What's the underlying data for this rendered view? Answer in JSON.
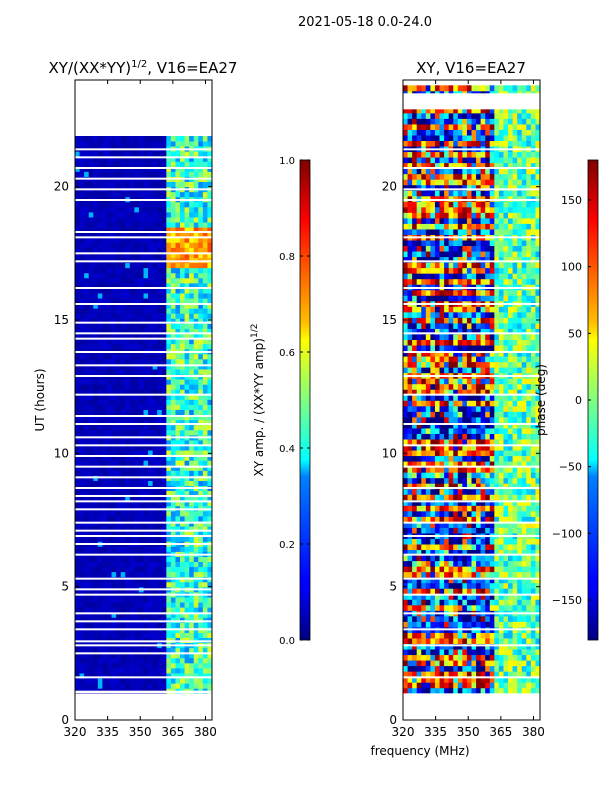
{
  "suptitle": "2021-05-18 0.0-24.0",
  "chart_data": [
    {
      "type": "heatmap",
      "title_main": "XY/(XX*YY)",
      "title_sup": "1/2",
      "title_tail": ", V16=EA27",
      "xlabel": "",
      "ylabel": "UT (hours)",
      "x_ticks": [
        320,
        335,
        350,
        365,
        380
      ],
      "xlim": [
        320,
        383
      ],
      "y_ticks": [
        0,
        5,
        10,
        15,
        20
      ],
      "ylim": [
        0,
        24
      ],
      "data_start_hour": 1.0,
      "data_end_hour": 21.9,
      "gap_bands": [
        [
          21.9,
          24.0
        ],
        [
          23.2,
          23.5
        ],
        [
          1.0,
          1.1
        ]
      ],
      "missing_rows": [
        1.6,
        2.5,
        2.8,
        2.95,
        3.4,
        3.7,
        4.0,
        4.7,
        4.9,
        5.3,
        6.2,
        6.6,
        6.9,
        7.1,
        7.4,
        7.9,
        8.2,
        8.4,
        8.7,
        9.1,
        9.5,
        9.9,
        10.3,
        10.6,
        11.1,
        11.4,
        12.2,
        12.9,
        13.3,
        13.8,
        14.3,
        14.5,
        14.9,
        15.6,
        16.2,
        17.2,
        17.5,
        18.1,
        18.3,
        19.5,
        19.9,
        20.3,
        20.7,
        21.1,
        21.4
      ],
      "bright_band_mhz": [
        362,
        382
      ],
      "colorbar": {
        "label_main": "XY amp. / (XX*YY amp)",
        "label_sup": "1/2",
        "ticks": [
          "0.0",
          "0.2",
          "0.4",
          "0.6",
          "0.8",
          "1.0"
        ],
        "range": [
          0.0,
          1.0
        ]
      }
    },
    {
      "type": "heatmap",
      "title_main": "XY, V16=EA27",
      "xlabel": "frequency (MHz)",
      "ylabel": "",
      "x_ticks": [
        320,
        335,
        350,
        365,
        380
      ],
      "xlim": [
        320,
        383
      ],
      "y_ticks": [
        0,
        5,
        10,
        15,
        20
      ],
      "ylim": [
        0,
        24
      ],
      "data_start_hour": 1.0,
      "data_end_hour": 23.8,
      "gap_bands": [
        [
          22.9,
          23.5
        ],
        [
          0.0,
          1.0
        ]
      ],
      "missing_rows": [
        1.6,
        2.8,
        3.4,
        4.0,
        4.7,
        5.3,
        6.2,
        6.9,
        7.4,
        8.2,
        8.7,
        9.5,
        10.3,
        11.1,
        12.2,
        12.9,
        13.8,
        14.5,
        15.6,
        16.2,
        17.2,
        18.1,
        19.5,
        19.9,
        20.7,
        21.4
      ],
      "bright_band_mhz": [
        362,
        382
      ],
      "colorbar": {
        "label_main": "phase (deg)",
        "ticks": [
          "150",
          "100",
          "50",
          "0",
          "−50",
          "−100",
          "−150"
        ],
        "tick_values": [
          150,
          100,
          50,
          0,
          -50,
          -100,
          -150
        ],
        "range": [
          -180,
          180
        ]
      }
    }
  ]
}
